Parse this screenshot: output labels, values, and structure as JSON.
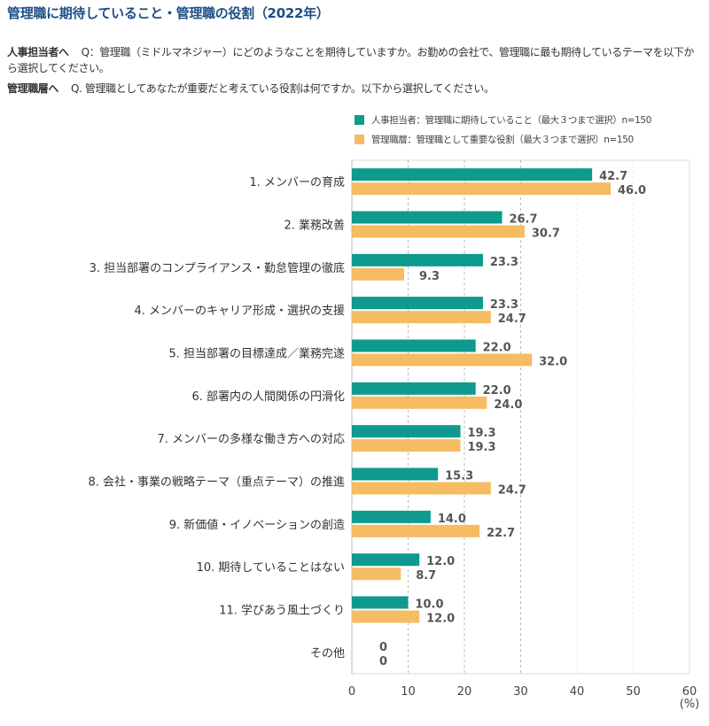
{
  "header": {
    "title": "管理職に期待していること・管理職の役割（2022年）",
    "q1_prefix": "人事担当者へ",
    "q1_text": "Q：管理職（ミドルマネジャー）にどのようなことを期待していますか。お勤めの会社で、管理職に最も期待しているテーマを以下から選択してください。",
    "q2_prefix": "管理職層へ",
    "q2_text": "Q. 管理職としてあなたが重要だと考えている役割は何ですか。以下から選択してください。"
  },
  "colors": {
    "title": "#1d4f85",
    "series_hr": "#0e9a8c",
    "series_mgr": "#f5bc63"
  },
  "chart_data": {
    "type": "bar",
    "orientation": "horizontal",
    "title": "管理職に期待していること・管理職の役割（2022年）",
    "xlabel": "(%)",
    "ylabel": "",
    "xlim": [
      0,
      60
    ],
    "xticks": [
      0,
      10,
      20,
      30,
      40,
      50,
      60
    ],
    "grid": true,
    "legend_position": "top-right",
    "categories": [
      "1. メンバーの育成",
      "2. 業務改善",
      "3. 担当部署のコンプライアンス・勤怠管理の徹底",
      "4. メンバーのキャリア形成・選択の支援",
      "5. 担当部署の目標達成／業務完遂",
      "6. 部署内の人間関係の円滑化",
      "7. メンバーの多様な働き方への対応",
      "8. 会社・事業の戦略テーマ（重点テーマ）の推進",
      "9. 新価値・イノベーションの創造",
      "10. 期待していることはない",
      "11. 学びあう風土づくり",
      "その他"
    ],
    "series": [
      {
        "name": "人事担当者：管理職に期待していること（最大３つまで選択）n=150",
        "values": [
          42.7,
          26.7,
          23.3,
          23.3,
          22.0,
          22.0,
          19.3,
          15.3,
          14.0,
          12.0,
          10.0,
          0
        ],
        "labels": [
          "42.7",
          "26.7",
          "23.3",
          "23.3",
          "22.0",
          "22.0",
          "19.3",
          "15.3",
          "14.0",
          "12.0",
          "10.0",
          "0"
        ]
      },
      {
        "name": "管理職層：管理職として重要な役割（最大３つまで選択）n=150",
        "values": [
          46.0,
          30.7,
          9.3,
          24.7,
          32.0,
          24.0,
          19.3,
          24.7,
          22.7,
          8.7,
          12.0,
          0
        ],
        "labels": [
          "46.0",
          "30.7",
          "9.3",
          "24.7",
          "32.0",
          "24.0",
          "19.3",
          "24.7",
          "22.7",
          "8.7",
          "12.0",
          "0"
        ]
      }
    ]
  }
}
